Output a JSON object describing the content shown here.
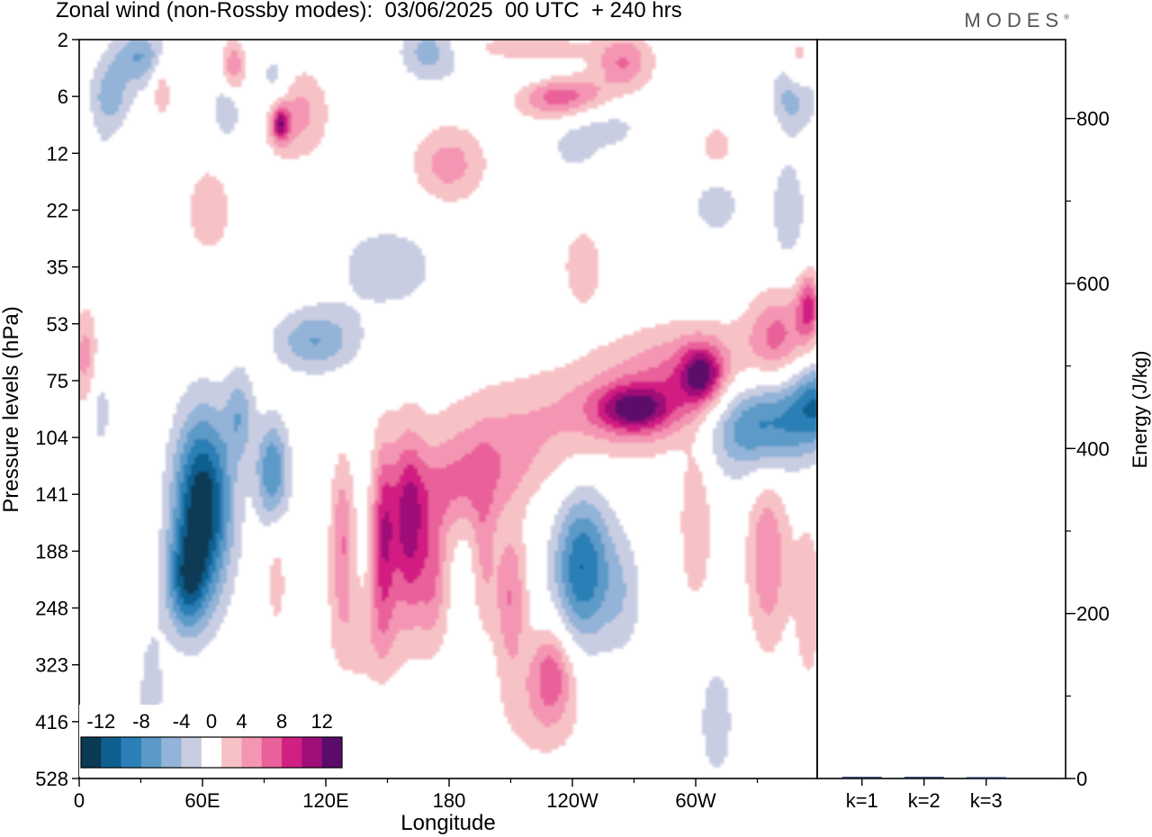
{
  "header": {
    "title": "Zonal wind (non-Rossby modes):  03/06/2025  00 UTC  + 240 hrs",
    "logo": "MODES",
    "logo_mark": "®"
  },
  "chart_data": [
    {
      "type": "heatmap",
      "title": "Zonal wind (non-Rossby modes):  03/06/2025  00 UTC  + 240 hrs",
      "xlabel": "Longitude",
      "ylabel": "Pressure levels (hPa)",
      "x_ticks": [
        "0",
        "60E",
        "120E",
        "180",
        "120W",
        "60W"
      ],
      "x_tick_degrees": [
        0,
        60,
        120,
        180,
        240,
        300
      ],
      "xlim": [
        0,
        360
      ],
      "y_ticks": [
        "2",
        "6",
        "12",
        "22",
        "35",
        "53",
        "75",
        "104",
        "141",
        "188",
        "248",
        "323",
        "416",
        "528"
      ],
      "y_axis_order": "top-to-bottom, one level per tick",
      "grid": false,
      "colorbar": {
        "placement": "bottom-left",
        "labels": [
          "-12",
          "-8",
          "-4",
          "0",
          "4",
          "8",
          "12"
        ],
        "levels": [
          -14,
          -12,
          -10,
          -8,
          -6,
          -4,
          -2,
          2,
          4,
          6,
          8,
          10,
          12,
          14
        ],
        "colors": [
          "#0a3a55",
          "#0e5f8f",
          "#2b7fb6",
          "#5b9ac8",
          "#93b3d8",
          "#c9cde2",
          "#ffffff",
          "#f7c2c6",
          "#f496b3",
          "#e9609a",
          "#d21f82",
          "#9f0f78",
          "#5b0b6b"
        ]
      },
      "blobs": [
        {
          "x": 60,
          "lev": 8.2,
          "rx": 14,
          "ry": 1.6,
          "v": -14
        },
        {
          "x": 52,
          "lev": 9.6,
          "rx": 10,
          "ry": 0.9,
          "v": -8
        },
        {
          "x": 94,
          "lev": 7.6,
          "rx": 8,
          "ry": 0.9,
          "v": -8
        },
        {
          "x": 78,
          "lev": 6.6,
          "rx": 7,
          "ry": 0.8,
          "v": -5
        },
        {
          "x": 115,
          "lev": 5.3,
          "rx": 20,
          "ry": 0.55,
          "v": -6
        },
        {
          "x": 35,
          "lev": 11.5,
          "rx": 7,
          "ry": 1.3,
          "v": -3
        },
        {
          "x": 150,
          "lev": 4.0,
          "rx": 30,
          "ry": 0.9,
          "v": -3
        },
        {
          "x": 10,
          "lev": 6.5,
          "rx": 6,
          "ry": 0.8,
          "v": -3
        },
        {
          "x": 330,
          "lev": 6.7,
          "rx": 28,
          "ry": 0.9,
          "v": -11
        },
        {
          "x": 360,
          "lev": 6.4,
          "rx": 14,
          "ry": 0.7,
          "v": -8
        },
        {
          "x": 245,
          "lev": 9.3,
          "rx": 14,
          "ry": 1.3,
          "v": -10
        },
        {
          "x": 265,
          "lev": 9.8,
          "rx": 10,
          "ry": 1.1,
          "v": -3
        },
        {
          "x": 310,
          "lev": 12.0,
          "rx": 10,
          "ry": 1.3,
          "v": -3
        },
        {
          "x": 160,
          "lev": 12.3,
          "rx": 20,
          "ry": 0.6,
          "v": -2
        },
        {
          "x": 15,
          "lev": 1.0,
          "rx": 10,
          "ry": 0.6,
          "v": -5
        },
        {
          "x": 30,
          "lev": 0.3,
          "rx": 14,
          "ry": 0.5,
          "v": -6
        },
        {
          "x": 72,
          "lev": 1.2,
          "rx": 8,
          "ry": 0.6,
          "v": -4
        },
        {
          "x": 95,
          "lev": 0.7,
          "rx": 8,
          "ry": 0.5,
          "v": -4
        },
        {
          "x": 170,
          "lev": 0.2,
          "rx": 14,
          "ry": 0.5,
          "v": -5
        },
        {
          "x": 215,
          "lev": 0.5,
          "rx": 30,
          "ry": 0.4,
          "v": -3
        },
        {
          "x": 255,
          "lev": 1.5,
          "rx": 22,
          "ry": 0.5,
          "v": -3
        },
        {
          "x": 240,
          "lev": 2.0,
          "rx": 12,
          "ry": 0.5,
          "v": -2
        },
        {
          "x": 310,
          "lev": 2.9,
          "rx": 14,
          "ry": 0.6,
          "v": -3
        },
        {
          "x": 345,
          "lev": 3.0,
          "rx": 8,
          "ry": 0.9,
          "v": -4
        },
        {
          "x": 348,
          "lev": 1.0,
          "rx": 10,
          "ry": 0.6,
          "v": -6
        },
        {
          "x": 12,
          "lev": 2.5,
          "rx": 6,
          "ry": 1.0,
          "v": -2
        },
        {
          "x": 250,
          "lev": 6.6,
          "rx": 70,
          "ry": 0.9,
          "v": 4
        },
        {
          "x": 300,
          "lev": 5.9,
          "rx": 40,
          "ry": 0.9,
          "v": 6
        },
        {
          "x": 303,
          "lev": 5.9,
          "rx": 10,
          "ry": 0.5,
          "v": 9
        },
        {
          "x": 270,
          "lev": 6.5,
          "rx": 18,
          "ry": 0.4,
          "v": 9
        },
        {
          "x": 340,
          "lev": 5.2,
          "rx": 14,
          "ry": 0.8,
          "v": 6
        },
        {
          "x": 355,
          "lev": 4.7,
          "rx": 6,
          "ry": 0.6,
          "v": 8
        },
        {
          "x": 200,
          "lev": 7.5,
          "rx": 30,
          "ry": 0.8,
          "v": 4
        },
        {
          "x": 180,
          "lev": 8.0,
          "rx": 22,
          "ry": 0.8,
          "v": 4
        },
        {
          "x": 160,
          "lev": 8.6,
          "rx": 8,
          "ry": 1.5,
          "v": 10
        },
        {
          "x": 148,
          "lev": 8.8,
          "rx": 6,
          "ry": 1.6,
          "v": 9
        },
        {
          "x": 172,
          "lev": 9.4,
          "rx": 8,
          "ry": 1.3,
          "v": 6
        },
        {
          "x": 197,
          "lev": 9.0,
          "rx": 6,
          "ry": 1.4,
          "v": 4
        },
        {
          "x": 128,
          "lev": 8.8,
          "rx": 6,
          "ry": 1.4,
          "v": 6
        },
        {
          "x": 210,
          "lev": 9.8,
          "rx": 8,
          "ry": 1.3,
          "v": 6
        },
        {
          "x": 300,
          "lev": 8.5,
          "rx": 8,
          "ry": 1.5,
          "v": 4
        },
        {
          "x": 335,
          "lev": 9.1,
          "rx": 10,
          "ry": 1.6,
          "v": 6
        },
        {
          "x": 96,
          "lev": 9.5,
          "rx": 5,
          "ry": 1.0,
          "v": 3
        },
        {
          "x": 140,
          "lev": 10.5,
          "rx": 20,
          "ry": 1.0,
          "v": 3
        },
        {
          "x": 230,
          "lev": 11.1,
          "rx": 10,
          "ry": 0.8,
          "v": 6
        },
        {
          "x": 225,
          "lev": 11.8,
          "rx": 22,
          "ry": 1.0,
          "v": 3
        },
        {
          "x": 355,
          "lev": 9.9,
          "rx": 8,
          "ry": 1.8,
          "v": 3
        },
        {
          "x": 3,
          "lev": 5.6,
          "rx": 6,
          "ry": 0.9,
          "v": 5
        },
        {
          "x": 180,
          "lev": 2.2,
          "rx": 18,
          "ry": 0.7,
          "v": 5
        },
        {
          "x": 235,
          "lev": 1.0,
          "rx": 22,
          "ry": 0.4,
          "v": 8
        },
        {
          "x": 218,
          "lev": 0.2,
          "rx": 30,
          "ry": 0.3,
          "v": 5
        },
        {
          "x": 265,
          "lev": 0.4,
          "rx": 14,
          "ry": 0.5,
          "v": 6
        },
        {
          "x": 105,
          "lev": 1.3,
          "rx": 16,
          "ry": 0.8,
          "v": 5
        },
        {
          "x": 98,
          "lev": 1.5,
          "rx": 4,
          "ry": 0.3,
          "v": 9
        },
        {
          "x": 75,
          "lev": 0.5,
          "rx": 6,
          "ry": 0.5,
          "v": 6
        },
        {
          "x": 40,
          "lev": 0.8,
          "rx": 5,
          "ry": 0.6,
          "v": 4
        },
        {
          "x": 63,
          "lev": 3.0,
          "rx": 14,
          "ry": 1.0,
          "v": 3
        },
        {
          "x": 245,
          "lev": 4.0,
          "rx": 12,
          "ry": 0.9,
          "v": 3
        },
        {
          "x": 310,
          "lev": 1.9,
          "rx": 10,
          "ry": 0.5,
          "v": 3
        },
        {
          "x": 350,
          "lev": 0.5,
          "rx": 6,
          "ry": 0.6,
          "v": 4
        }
      ]
    },
    {
      "type": "bar",
      "categories": [
        "k=1",
        "k=2",
        "k=3"
      ],
      "values": [
        2,
        2,
        1
      ],
      "ylabel": "Energy (J/kg)",
      "ylim": [
        0,
        900
      ],
      "y_ticks": [
        "0",
        "200",
        "400",
        "600",
        "800"
      ],
      "y_tick_values": [
        0,
        200,
        400,
        600,
        800
      ],
      "y_minor_step": 100,
      "bar_color": "#1a2a55"
    }
  ]
}
